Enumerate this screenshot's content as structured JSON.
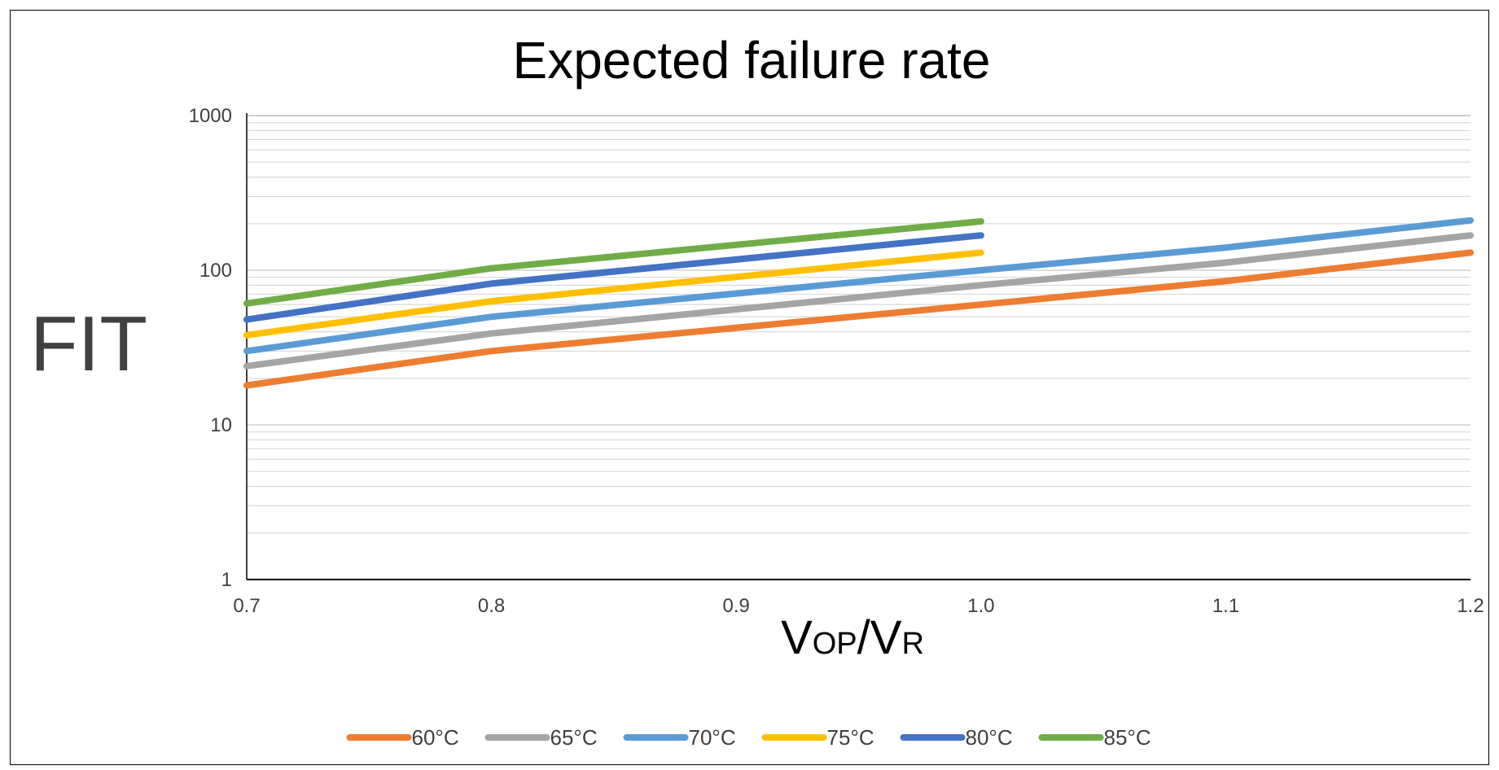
{
  "chart_data": {
    "type": "line",
    "title": "Expected failure rate",
    "ylabel": "FIT",
    "xlabel": {
      "main1": "V",
      "sub1": "OP",
      "sep": "/V",
      "sub2": "R"
    },
    "x_ticks": [
      "0.7",
      "0.8",
      "0.9",
      "1.0",
      "1.1",
      "1.2"
    ],
    "y_ticks": [
      "1",
      "10",
      "100",
      "1000"
    ],
    "xlim": [
      0.7,
      1.2
    ],
    "ylim": [
      1,
      1000
    ],
    "y_scale": "log",
    "grid": "horizontal, major and minor",
    "legend_position": "bottom",
    "series": [
      {
        "name": "60°C",
        "color": "#ED7D31",
        "points": [
          [
            0.7,
            18
          ],
          [
            0.8,
            30
          ],
          [
            1.0,
            60
          ],
          [
            1.1,
            85
          ],
          [
            1.2,
            130
          ]
        ]
      },
      {
        "name": "65°C",
        "color": "#A5A5A5",
        "points": [
          [
            0.7,
            24
          ],
          [
            0.8,
            39
          ],
          [
            1.0,
            80
          ],
          [
            1.1,
            112
          ],
          [
            1.2,
            168
          ]
        ]
      },
      {
        "name": "70°C",
        "color": "#5B9BD5",
        "points": [
          [
            0.7,
            30
          ],
          [
            0.8,
            50
          ],
          [
            1.0,
            100
          ],
          [
            1.1,
            140
          ],
          [
            1.2,
            210
          ]
        ]
      },
      {
        "name": "75°C",
        "color": "#FFC000",
        "points": [
          [
            0.7,
            38
          ],
          [
            0.8,
            63
          ],
          [
            1.0,
            130
          ]
        ]
      },
      {
        "name": "80°C",
        "color": "#4472C4",
        "points": [
          [
            0.7,
            48
          ],
          [
            0.8,
            82
          ],
          [
            1.0,
            168
          ]
        ]
      },
      {
        "name": "85°C",
        "color": "#70AD47",
        "points": [
          [
            0.7,
            61
          ],
          [
            0.8,
            103
          ],
          [
            1.0,
            207
          ]
        ]
      }
    ]
  }
}
